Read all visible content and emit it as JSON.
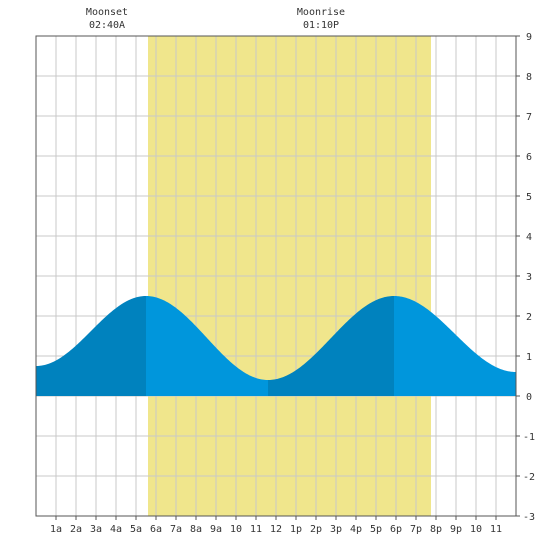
{
  "chart_data": {
    "type": "area",
    "title": "",
    "xlabel": "",
    "ylabel": "",
    "x_tick_labels": [
      "1a",
      "2a",
      "3a",
      "4a",
      "5a",
      "6a",
      "7a",
      "8a",
      "9a",
      "10",
      "11",
      "12",
      "1p",
      "2p",
      "3p",
      "4p",
      "5p",
      "6p",
      "7p",
      "8p",
      "9p",
      "10",
      "11"
    ],
    "y_tick_labels": [
      "9",
      "8",
      "7",
      "6",
      "5",
      "4",
      "3",
      "2",
      "1",
      "0",
      "-1",
      "-2",
      "-3"
    ],
    "xlim": [
      0,
      24
    ],
    "ylim": [
      -3,
      9
    ],
    "grid": true,
    "daylight": {
      "start_hour": 5.6,
      "end_hour": 19.75
    },
    "annotations": [
      {
        "label": "Moonset",
        "time": "02:40A"
      },
      {
        "label": "Moonrise",
        "time": "01:10P"
      }
    ],
    "series": [
      {
        "x": [
          0,
          5.5,
          11.6,
          17.9,
          24
        ],
        "y": [
          0.75,
          2.5,
          0.4,
          2.5,
          0.6
        ],
        "events": [
          "",
          "high",
          "low",
          "high",
          ""
        ]
      }
    ],
    "colors": {
      "daylight": "#f0e68c",
      "water_light": "#0096dc",
      "water_dark": "#0082be",
      "grid": "#c8c8c8",
      "axis": "#555555"
    }
  }
}
